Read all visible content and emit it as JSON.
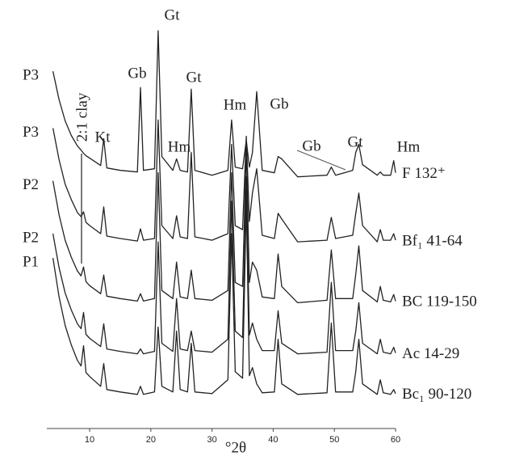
{
  "chart_data": {
    "type": "line",
    "x_label": "°2θ",
    "x": [
      4,
      5,
      6,
      7,
      8,
      8.6,
      9,
      9.4,
      10,
      11.8,
      12.3,
      12.8,
      15,
      17.8,
      18.3,
      18.8,
      20.6,
      21.2,
      21.8,
      23.6,
      24.2,
      24.8,
      26,
      26.6,
      27.2,
      30,
      32.6,
      33.2,
      33.8,
      35,
      35.6,
      36.1,
      36.6,
      37.3,
      38.2,
      40.2,
      40.8,
      41.4,
      44,
      48.8,
      49.5,
      50.2,
      53,
      53.5,
      54,
      54.6,
      57,
      57.5,
      58,
      59.2,
      59.7,
      60
    ],
    "xlim": [
      3,
      60
    ],
    "xticks": [
      10,
      20,
      30,
      40,
      50,
      60
    ],
    "color": "#222222",
    "series": [
      {
        "name": "F 132⁺",
        "profile": "P3",
        "values": [
          440,
          405,
          379,
          361,
          348,
          343,
          339,
          336,
          333,
          324,
          357,
          321,
          318,
          316,
          420,
          318,
          320,
          490,
          335,
          318,
          332,
          318,
          316,
          418,
          318,
          312,
          318,
          380,
          322,
          320,
          355,
          322,
          340,
          415,
          318,
          315,
          335,
          332,
          310,
          312,
          322,
          312,
          318,
          340,
          350,
          325,
          312,
          316,
          312,
          312,
          330,
          315
        ]
      },
      {
        "name": "Bf₁ 41-64",
        "profile": "P3",
        "values": [
          370,
          331,
          301,
          282,
          266,
          261,
          267,
          254,
          250,
          240,
          273,
          237,
          234,
          231,
          246,
          232,
          234,
          380,
          250,
          234,
          262,
          236,
          234,
          340,
          236,
          232,
          240,
          350,
          250,
          245,
          360,
          255,
          290,
          320,
          238,
          234,
          265,
          258,
          230,
          232,
          260,
          234,
          238,
          265,
          290,
          250,
          230,
          245,
          232,
          232,
          240,
          232
        ]
      },
      {
        "name": "BC 119-150",
        "profile": "P2",
        "values": [
          305,
          263,
          232,
          211,
          194,
          188,
          199,
          181,
          176,
          166,
          189,
          163,
          160,
          157,
          166,
          157,
          160,
          315,
          170,
          160,
          205,
          162,
          160,
          195,
          160,
          158,
          170,
          315,
          180,
          175,
          345,
          180,
          205,
          195,
          162,
          160,
          215,
          175,
          155,
          158,
          220,
          160,
          160,
          190,
          225,
          170,
          156,
          175,
          158,
          156,
          165,
          157
        ]
      },
      {
        "name": "Ac 14-29",
        "profile": "P2",
        "values": [
          240,
          198,
          167,
          146,
          129,
          123,
          143,
          116,
          111,
          101,
          129,
          98,
          95,
          92,
          98,
          92,
          95,
          230,
          105,
          95,
          160,
          98,
          96,
          120,
          96,
          94,
          110,
          280,
          120,
          112,
          310,
          115,
          130,
          110,
          96,
          96,
          145,
          105,
          92,
          94,
          180,
          96,
          96,
          120,
          155,
          105,
          92,
          110,
          94,
          92,
          100,
          93
        ]
      },
      {
        "name": "Bc₁ 90-120",
        "profile": "P1",
        "values": [
          210,
          162,
          127,
          103,
          84,
          77,
          102,
          69,
          64,
          52,
          80,
          48,
          45,
          42,
          52,
          42,
          45,
          125,
          52,
          45,
          120,
          48,
          45,
          105,
          45,
          43,
          60,
          240,
          70,
          62,
          280,
          65,
          75,
          55,
          44,
          45,
          110,
          55,
          42,
          44,
          130,
          45,
          45,
          70,
          110,
          55,
          42,
          60,
          44,
          42,
          48,
          43
        ]
      }
    ],
    "annotations": [
      "Gt",
      "Gb",
      "Gt",
      "Hm",
      "Gb",
      "Hm",
      "Kt",
      "Gb",
      "Gt",
      "Hm",
      "2:1 clay"
    ]
  }
}
